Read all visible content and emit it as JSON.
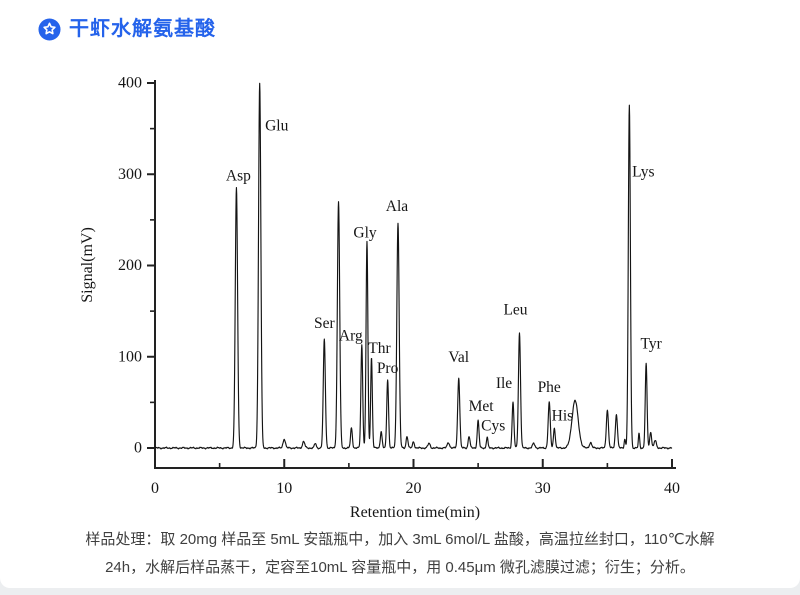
{
  "header": {
    "title": "干虾水解氨基酸",
    "icon": "star-badge",
    "accent_color": "#2563eb"
  },
  "caption": {
    "line1": "样品处理：取 20mg 样品至 5mL 安瓿瓶中，加入 3mL 6mol/L 盐酸，高温拉丝封口，110℃水解",
    "line2": "24h，水解后样品蒸干，定容至10mL 容量瓶中，用 0.45μm 微孔滤膜过滤；衍生；分析。"
  },
  "chart_data": {
    "type": "line",
    "subtype": "chromatogram",
    "xlabel": "Retention time(min)",
    "ylabel": "Signal(mV)",
    "xlim": [
      0,
      40
    ],
    "ylim": [
      0,
      400
    ],
    "x_major_ticks": [
      0,
      10,
      20,
      30,
      40
    ],
    "x_minor_ticks": [
      5,
      15,
      25,
      35
    ],
    "y_major_ticks": [
      0,
      100,
      200,
      300,
      400
    ],
    "y_minor_ticks": [
      50,
      150,
      250,
      350
    ],
    "grid": false,
    "legend": false,
    "line_color": "#141414",
    "axis_color": "#222222",
    "peaks": [
      {
        "name": "Asp",
        "t": 6.3,
        "mV": 285,
        "sigma": 0.09,
        "label_dx": 2,
        "label_dy": -12
      },
      {
        "name": "Glu",
        "t": 8.1,
        "mV": 400,
        "sigma": 0.09,
        "label_dx": 17,
        "label_dy": 43
      },
      {
        "name": "",
        "t": 10.0,
        "mV": 10,
        "sigma": 0.09
      },
      {
        "name": "",
        "t": 11.5,
        "mV": 7,
        "sigma": 0.09
      },
      {
        "name": "",
        "t": 12.4,
        "mV": 5,
        "sigma": 0.07
      },
      {
        "name": "Ser",
        "t": 13.1,
        "mV": 119,
        "sigma": 0.08,
        "label_dx": 0,
        "label_dy": -16
      },
      {
        "name": "",
        "t": 14.2,
        "mV": 270,
        "sigma": 0.09
      },
      {
        "name": "",
        "t": 15.2,
        "mV": 22,
        "sigma": 0.07
      },
      {
        "name": "Arg",
        "t": 16.0,
        "mV": 113,
        "sigma": 0.07,
        "label_dx": -11,
        "label_dy": -9
      },
      {
        "name": "Gly",
        "t": 16.4,
        "mV": 226,
        "sigma": 0.07,
        "label_dx": -2,
        "label_dy": -9
      },
      {
        "name": "Thr",
        "t": 16.75,
        "mV": 99,
        "sigma": 0.065,
        "label_dx": 8,
        "label_dy": -9
      },
      {
        "name": "",
        "t": 17.5,
        "mV": 18,
        "sigma": 0.07
      },
      {
        "name": "Pro",
        "t": 18.0,
        "mV": 75,
        "sigma": 0.07,
        "label_dx": 0,
        "label_dy": -11
      },
      {
        "name": "Ala",
        "t": 18.8,
        "mV": 247,
        "sigma": 0.09,
        "label_dx": -1,
        "label_dy": -16
      },
      {
        "name": "",
        "t": 19.5,
        "mV": 13,
        "sigma": 0.07
      },
      {
        "name": "",
        "t": 20.0,
        "mV": 7,
        "sigma": 0.07
      },
      {
        "name": "",
        "t": 21.2,
        "mV": 5,
        "sigma": 0.09
      },
      {
        "name": "",
        "t": 22.7,
        "mV": 6,
        "sigma": 0.09
      },
      {
        "name": "Val",
        "t": 23.5,
        "mV": 77,
        "sigma": 0.08,
        "label_dx": 0,
        "label_dy": -20
      },
      {
        "name": "",
        "t": 24.3,
        "mV": 13,
        "sigma": 0.07
      },
      {
        "name": "Met",
        "t": 25.0,
        "mV": 30,
        "sigma": 0.07,
        "label_dx": 3,
        "label_dy": -14
      },
      {
        "name": "Cys",
        "t": 25.7,
        "mV": 12,
        "sigma": 0.06,
        "label_dx": 6,
        "label_dy": -11
      },
      {
        "name": "Ile",
        "t": 27.7,
        "mV": 50,
        "sigma": 0.07,
        "label_dx": -9,
        "label_dy": -19
      },
      {
        "name": "Leu",
        "t": 28.2,
        "mV": 126,
        "sigma": 0.08,
        "label_dx": -4,
        "label_dy": -23
      },
      {
        "name": "",
        "t": 29.3,
        "mV": 5,
        "sigma": 0.09
      },
      {
        "name": "Phe",
        "t": 30.5,
        "mV": 50,
        "sigma": 0.08,
        "label_dx": 0,
        "label_dy": -15
      },
      {
        "name": "His",
        "t": 30.9,
        "mV": 22,
        "sigma": 0.07,
        "label_dx": 8,
        "label_dy": -12
      },
      {
        "name": "",
        "t": 32.5,
        "mV": 52,
        "sigma": 0.24
      },
      {
        "name": "",
        "t": 33.7,
        "mV": 6,
        "sigma": 0.09
      },
      {
        "name": "",
        "t": 35.0,
        "mV": 42,
        "sigma": 0.08
      },
      {
        "name": "",
        "t": 35.7,
        "mV": 37,
        "sigma": 0.08
      },
      {
        "name": "",
        "t": 36.35,
        "mV": 10,
        "sigma": 0.05
      },
      {
        "name": "Lys",
        "t": 36.7,
        "mV": 375,
        "sigma": 0.08,
        "label_dx": 14,
        "label_dy": 66
      },
      {
        "name": "",
        "t": 37.45,
        "mV": 16,
        "sigma": 0.05
      },
      {
        "name": "Tyr",
        "t": 38.0,
        "mV": 92,
        "sigma": 0.07,
        "label_dx": 5,
        "label_dy": -20
      },
      {
        "name": "",
        "t": 38.35,
        "mV": 18,
        "sigma": 0.07
      },
      {
        "name": "",
        "t": 38.7,
        "mV": 8,
        "sigma": 0.09
      }
    ]
  }
}
